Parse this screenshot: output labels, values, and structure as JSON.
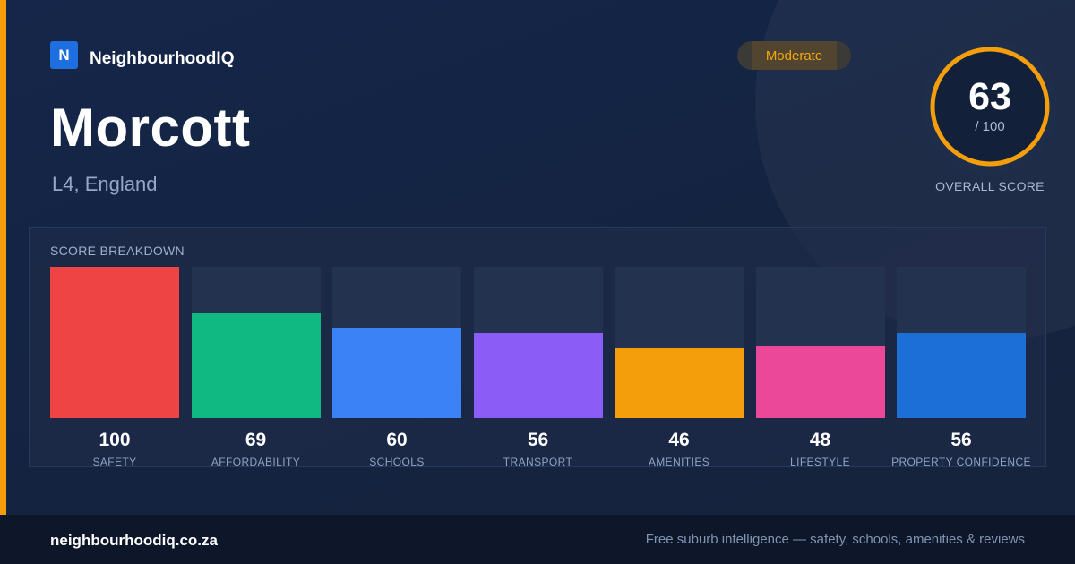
{
  "brand": {
    "logo_letter": "N",
    "name": "NeighbourhoodIQ"
  },
  "rating_badge": "Moderate",
  "suburb": {
    "name": "Morcott",
    "location": "L4, England"
  },
  "overall": {
    "score": "63",
    "max": "/ 100",
    "label": "OVERALL SCORE",
    "fraction": 0.63
  },
  "breakdown": {
    "title": "SCORE BREAKDOWN",
    "bars": [
      {
        "value": "100",
        "label": "SAFETY",
        "color": "#ef4444"
      },
      {
        "value": "69",
        "label": "AFFORDABILITY",
        "color": "#10b981"
      },
      {
        "value": "60",
        "label": "SCHOOLS",
        "color": "#3b82f6"
      },
      {
        "value": "56",
        "label": "TRANSPORT",
        "color": "#8b5cf6"
      },
      {
        "value": "46",
        "label": "AMENITIES",
        "color": "#f59e0b"
      },
      {
        "value": "48",
        "label": "LIFESTYLE",
        "color": "#ec4899"
      },
      {
        "value": "56",
        "label": "PROPERTY CONFIDENCE",
        "color": "#1d6fd8"
      }
    ]
  },
  "colors": {
    "accent": "#f59e0b",
    "brand": "#1d6fe0",
    "background": "#14223e"
  },
  "footer": {
    "url": "neighbourhoodiq.co.za",
    "tagline": "Free suburb intelligence — safety, schools, amenities & reviews"
  }
}
